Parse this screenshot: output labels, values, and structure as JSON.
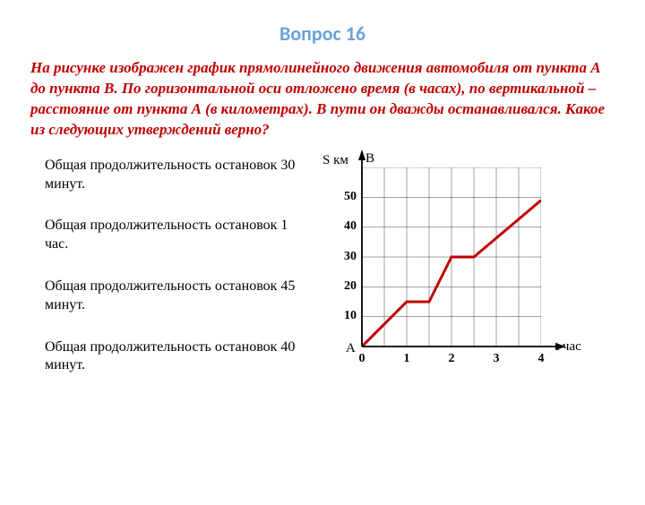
{
  "title": {
    "text": "Вопрос 16",
    "color": "#6aa3d8",
    "fontsize": 22
  },
  "problem": {
    "text": "На рисунке изображен график прямолинейного движения автомобиля от пункта А до пункта В. По горизонтальной оси отложено время (в часах), по вертикальной – расстояние от пункта А (в километрах). В пути он дважды останавливался. Какое из следующих утверждений верно?",
    "color": "#c00000",
    "fontsize": 17
  },
  "answers": {
    "fontsize": 16,
    "color": "#000000",
    "items": [
      "Общая продолжительность остановок 30 минут.",
      "Общая продолжительность остановок 1 час.",
      "Общая продолжительность остановок 45 минут.",
      "Общая продолжительность остановок 40 минут."
    ]
  },
  "chart": {
    "type": "line",
    "x_axis_label": "t час",
    "y_axis_label": "S км",
    "origin_label_A": "A",
    "top_label_B": "B",
    "xlim": [
      0,
      4
    ],
    "ylim": [
      0,
      60
    ],
    "xticks": [
      0,
      1,
      2,
      3,
      4
    ],
    "yticks": [
      10,
      20,
      30,
      40,
      50
    ],
    "grid_x_divisions": 8,
    "grid_y_divisions": 6,
    "series_color": "#c00000",
    "grid_color": "#444444",
    "tick_fontsize": 14,
    "label_fontsize": 15,
    "points": [
      {
        "x": 0,
        "y": 0
      },
      {
        "x": 1,
        "y": 15
      },
      {
        "x": 1.5,
        "y": 15
      },
      {
        "x": 2,
        "y": 30
      },
      {
        "x": 2.5,
        "y": 30
      },
      {
        "x": 4,
        "y": 49
      }
    ]
  }
}
